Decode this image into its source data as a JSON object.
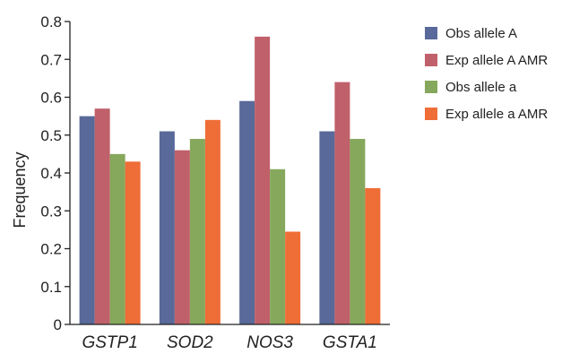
{
  "chart_data": {
    "type": "bar",
    "ylabel": "Frequency",
    "xlabel": "",
    "ylim": [
      0,
      0.8
    ],
    "yticks": [
      "0",
      "0.1",
      "0.2",
      "0.3",
      "0.4",
      "0.5",
      "0.6",
      "0.7",
      "0.8"
    ],
    "categories": [
      "GSTP1",
      "SOD2",
      "NOS3",
      "GSTA1"
    ],
    "legend_position": "top-right",
    "series": [
      {
        "name": "Obs allele A",
        "color": "#58699a",
        "values": [
          0.55,
          0.51,
          0.59,
          0.51
        ]
      },
      {
        "name": "Exp allele A AMR",
        "color": "#c0606a",
        "values": [
          0.57,
          0.46,
          0.76,
          0.64
        ]
      },
      {
        "name": "Obs allele a",
        "color": "#86a85c",
        "values": [
          0.45,
          0.49,
          0.41,
          0.49
        ]
      },
      {
        "name": "Exp allele a AMR",
        "color": "#ef6d37",
        "values": [
          0.43,
          0.54,
          0.245,
          0.36
        ]
      }
    ]
  }
}
